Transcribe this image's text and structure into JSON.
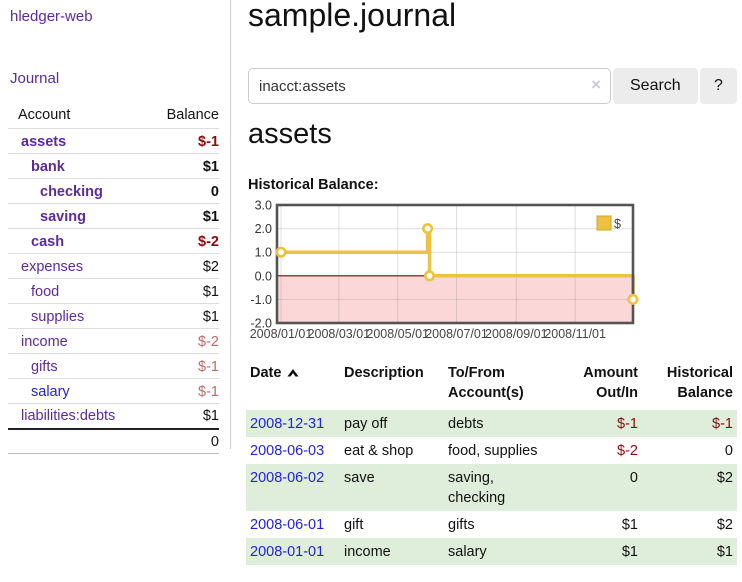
{
  "colors": {
    "purple_link": "#5c2a9d",
    "blue_link": "#2323dd",
    "negative_red": "#8b0b0b",
    "muted_rose": "#bb6b6b",
    "row_green": "#deeeda",
    "chart_yellow": "#edc240",
    "negative_region_pink": "#fbd7d7",
    "zero_line_red": "#7a0b0b",
    "chart_frame_gray": "#545454"
  },
  "sidebar": {
    "brand": "hledger-web",
    "nav": {
      "journal_label": "Journal"
    },
    "accounts": {
      "headers": {
        "account": "Account",
        "balance": "Balance"
      },
      "rows": [
        {
          "name": "assets",
          "depth": 1,
          "matched": true,
          "link": "purple",
          "balance": "$-1",
          "balance_color": "neg"
        },
        {
          "name": "bank",
          "depth": 2,
          "matched": true,
          "link": "purple",
          "balance": "$1",
          "balance_color": "plain"
        },
        {
          "name": "checking",
          "depth": 3,
          "matched": true,
          "link": "purple",
          "balance": "0",
          "balance_color": "plain"
        },
        {
          "name": "saving",
          "depth": 3,
          "matched": true,
          "link": "purple",
          "balance": "$1",
          "balance_color": "plain"
        },
        {
          "name": "cash",
          "depth": 2,
          "matched": true,
          "link": "purple",
          "balance": "$-2",
          "balance_color": "neg"
        },
        {
          "name": "expenses",
          "depth": 1,
          "matched": false,
          "link": "purple",
          "balance": "$2",
          "balance_color": "plain"
        },
        {
          "name": "food",
          "depth": 2,
          "matched": false,
          "link": "purple",
          "balance": "$1",
          "balance_color": "plain"
        },
        {
          "name": "supplies",
          "depth": 2,
          "matched": false,
          "link": "purple",
          "balance": "$1",
          "balance_color": "plain"
        },
        {
          "name": "income",
          "depth": 1,
          "matched": false,
          "link": "purple",
          "balance": "$-2",
          "balance_color": "rose"
        },
        {
          "name": "gifts",
          "depth": 2,
          "matched": false,
          "link": "purple",
          "balance": "$-1",
          "balance_color": "rose"
        },
        {
          "name": "salary",
          "depth": 2,
          "matched": false,
          "link": "blue",
          "balance": "$-1",
          "balance_color": "rose"
        },
        {
          "name": "liabilities:debts",
          "depth": 1,
          "matched": false,
          "link": "purple",
          "balance": "$1",
          "balance_color": "plain"
        }
      ],
      "total": "0"
    }
  },
  "main": {
    "title": "sample.journal",
    "search": {
      "value": "inacct:assets",
      "clear_icon": "×",
      "search_label": "Search",
      "help_label": "?"
    },
    "account_heading": "assets",
    "chart_label": "Historical Balance:"
  },
  "chart_data": {
    "type": "line",
    "title": "Historical Balance:",
    "step": true,
    "series": [
      {
        "name": "$",
        "color": "#edc240",
        "points": [
          [
            "2008-01-01",
            1
          ],
          [
            "2008-06-01",
            2
          ],
          [
            "2008-06-02",
            2
          ],
          [
            "2008-06-03",
            0
          ],
          [
            "2008-12-31",
            -1
          ]
        ]
      }
    ],
    "x_range": [
      "2008-01-01",
      "2008-12-31"
    ],
    "ylim": [
      -2,
      3
    ],
    "yticks": [
      "3.0",
      "2.0",
      "1.0",
      "0.0",
      "-1.0",
      "-2.0"
    ],
    "xticks": [
      "2008/01/01",
      "2008/03/01",
      "2008/05/01",
      "2008/07/01",
      "2008/09/01",
      "2008/11/01"
    ],
    "grid": true,
    "legend": {
      "label": "$",
      "position": "top-right"
    },
    "negative_region_shaded": true
  },
  "register": {
    "columns": [
      {
        "line1": "Date",
        "line2": "",
        "align": "left",
        "sorted": "asc"
      },
      {
        "line1": "Description",
        "line2": "",
        "align": "left"
      },
      {
        "line1": "To/From",
        "line2": "Account(s)",
        "align": "left"
      },
      {
        "line1": "Amount",
        "line2": "Out/In",
        "align": "right"
      },
      {
        "line1": "Historical",
        "line2": "Balance",
        "align": "right"
      }
    ],
    "rows": [
      {
        "date": "2008-12-31",
        "description": "pay off",
        "accounts": "debts",
        "amount": "$-1",
        "amount_neg": true,
        "balance": "$-1",
        "balance_neg": true,
        "shaded": true
      },
      {
        "date": "2008-06-03",
        "description": "eat & shop",
        "accounts": "food, supplies",
        "amount": "$-2",
        "amount_neg": true,
        "balance": "0",
        "balance_neg": false,
        "shaded": false
      },
      {
        "date": "2008-06-02",
        "description": "save",
        "accounts": "saving, checking",
        "amount": "0",
        "amount_neg": false,
        "balance": "$2",
        "balance_neg": false,
        "shaded": true
      },
      {
        "date": "2008-06-01",
        "description": "gift",
        "accounts": "gifts",
        "amount": "$1",
        "amount_neg": false,
        "balance": "$2",
        "balance_neg": false,
        "shaded": false
      },
      {
        "date": "2008-01-01",
        "description": "income",
        "accounts": "salary",
        "amount": "$1",
        "amount_neg": false,
        "balance": "$1",
        "balance_neg": false,
        "shaded": true
      }
    ]
  }
}
